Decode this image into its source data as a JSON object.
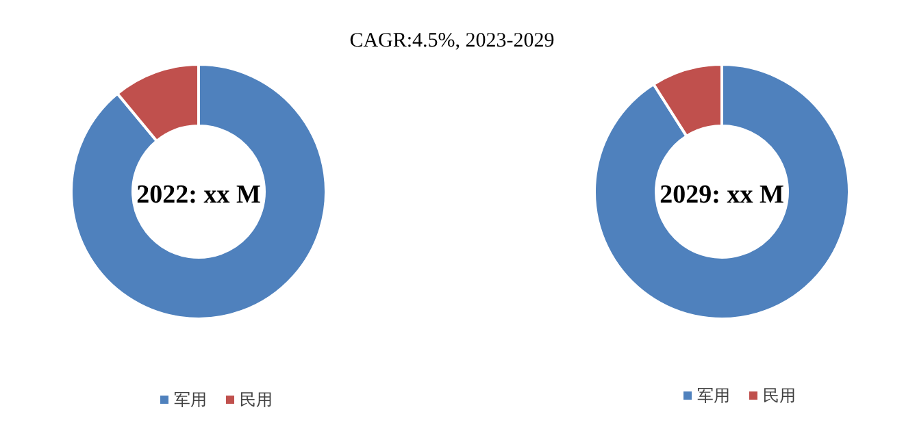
{
  "chart_data": [
    {
      "type": "donut",
      "title": "CAGR:4.5%, 2023-2029",
      "categories": [
        "军用",
        "民用"
      ],
      "values": [
        89,
        11
      ],
      "colors": [
        "#4f81bd",
        "#c0504d"
      ],
      "annotations": [
        "2022: xx M"
      ],
      "legend": "bottom"
    },
    {
      "type": "donut",
      "categories": [
        "军用",
        "民用"
      ],
      "values": [
        91,
        9
      ],
      "colors": [
        "#4f81bd",
        "#c0504d"
      ],
      "annotations": [
        "2029: xx M"
      ],
      "legend": "bottom"
    }
  ]
}
